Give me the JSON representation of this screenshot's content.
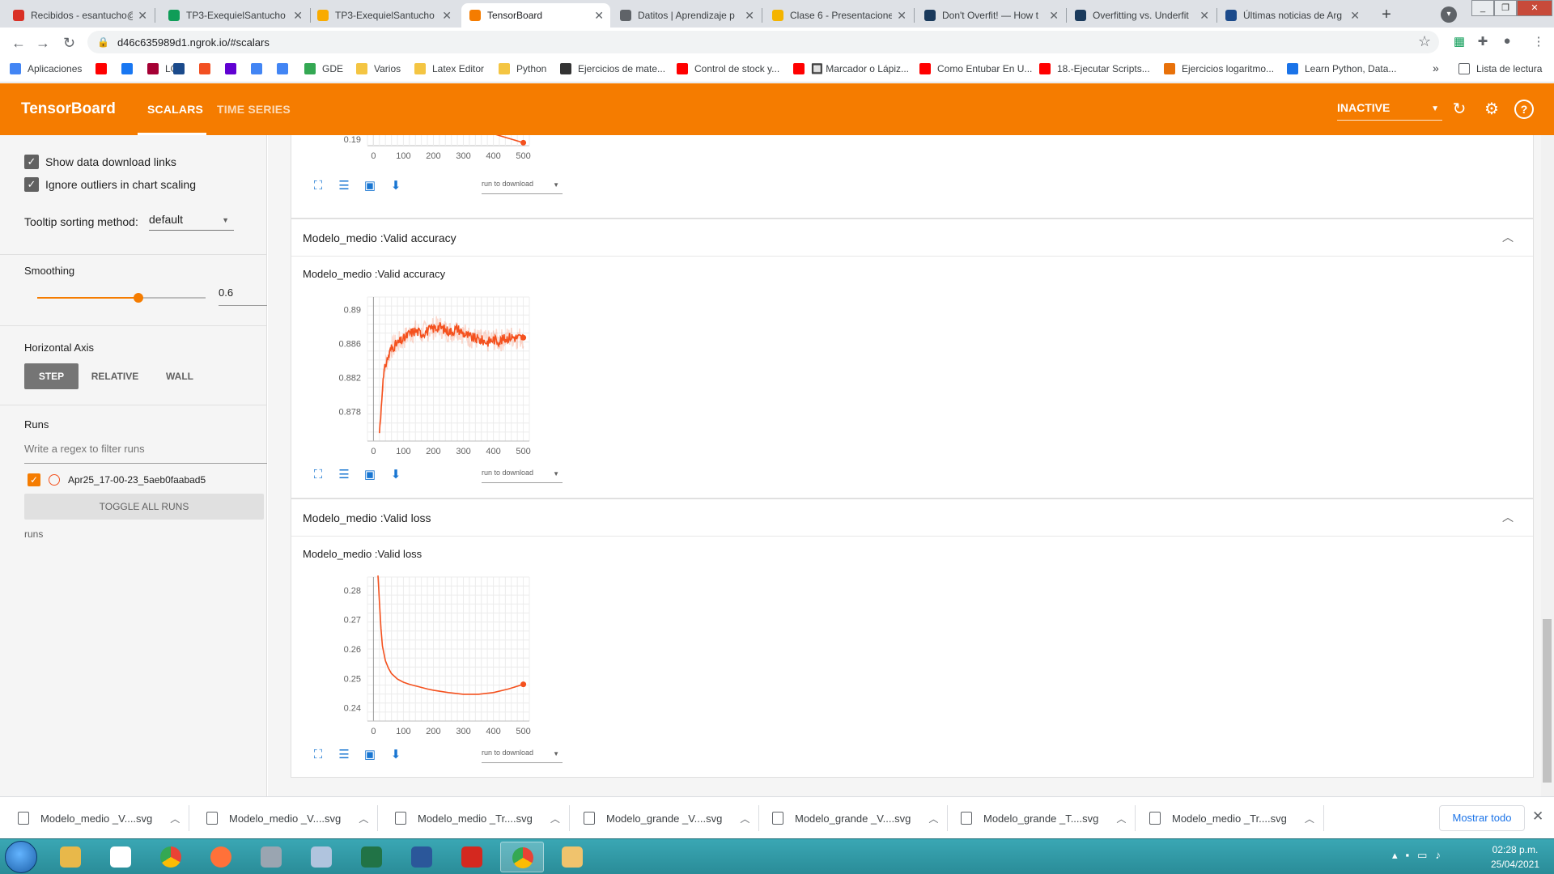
{
  "browser": {
    "tabs": [
      {
        "title": "Recibidos - esantucho@",
        "icon": "gmail-icon",
        "color": "#d93025"
      },
      {
        "title": "TP3-ExequielSantucho",
        "icon": "google-drive-icon",
        "color": "#0f9d58"
      },
      {
        "title": "TP3-ExequielSantucho",
        "icon": "colab-icon",
        "color": "#f9ab00"
      },
      {
        "title": "TensorBoard",
        "icon": "tensorboard-icon",
        "color": "#f57c00"
      },
      {
        "title": "Datitos | Aprendizaje p",
        "icon": "page-icon",
        "color": "#5f6368"
      },
      {
        "title": "Clase 6 - Presentacione",
        "icon": "google-slides-icon",
        "color": "#f4b400"
      },
      {
        "title": "Don't Overfit! — How t",
        "icon": "tds-icon",
        "color": "#1a3a5c"
      },
      {
        "title": "Overfitting vs. Underfit",
        "icon": "tds-icon",
        "color": "#1a3a5c"
      },
      {
        "title": "Últimas noticias de Arg",
        "icon": "ln-icon",
        "color": "#1b4a8b"
      }
    ],
    "new_tab": "+",
    "url": "d46c635989d1.ngrok.io/#scalars",
    "bookmarks": [
      {
        "label": "Aplicaciones",
        "icon": "apps-icon",
        "color": "#4285f4"
      },
      {
        "label": "",
        "icon": "youtube-icon",
        "color": "#ff0000"
      },
      {
        "label": "",
        "icon": "facebook-icon",
        "color": "#1877f2"
      },
      {
        "label": "LG",
        "icon": "lg-icon",
        "color": "#a50034"
      },
      {
        "label": "",
        "icon": "ln-icon",
        "color": "#1b4a8b"
      },
      {
        "label": "",
        "icon": "microsoft-icon",
        "color": "#f25022"
      },
      {
        "label": "",
        "icon": "yahoo-icon",
        "color": "#6001d2"
      },
      {
        "label": "",
        "icon": "google-icon",
        "color": "#4285f4"
      },
      {
        "label": "",
        "icon": "translate-icon",
        "color": "#4285f4"
      },
      {
        "label": "GDE",
        "icon": "gde-icon",
        "color": "#34a853"
      },
      {
        "label": "Varios",
        "icon": "folder-icon",
        "color": "#f4c542"
      },
      {
        "label": "Latex Editor",
        "icon": "folder-icon",
        "color": "#f4c542"
      },
      {
        "label": "Python",
        "icon": "folder-icon",
        "color": "#f4c542"
      },
      {
        "label": "Ejercicios de mate...",
        "icon": "chart-icon",
        "color": "#333333"
      },
      {
        "label": "Control de stock y...",
        "icon": "youtube-icon",
        "color": "#ff0000"
      },
      {
        "label": "🔲 Marcador o Lápiz...",
        "icon": "youtube-icon",
        "color": "#ff0000"
      },
      {
        "label": "Como Entubar En U...",
        "icon": "youtube-icon",
        "color": "#ff0000"
      },
      {
        "label": "18.-Ejecutar Scripts...",
        "icon": "youtube-icon",
        "color": "#ff0000"
      },
      {
        "label": "Ejercicios logaritmo...",
        "icon": "web-icon",
        "color": "#e8710a"
      },
      {
        "label": "Learn Python, Data...",
        "icon": "k-icon",
        "color": "#1a73e8"
      }
    ],
    "bookmarks_more": "»",
    "reading_list": "Lista de lectura"
  },
  "tensorboard": {
    "logo": "TensorBoard",
    "tabs": [
      "SCALARS",
      "TIME SERIES"
    ],
    "status": "INACTIVE",
    "colors": {
      "header": "#f57c00",
      "run": "#f4511e"
    }
  },
  "sidebar": {
    "show_download_links": "Show data download links",
    "ignore_outliers": "Ignore outliers in chart scaling",
    "tooltip_label": "Tooltip sorting method:",
    "tooltip_value": "default",
    "smoothing_label": "Smoothing",
    "smoothing_value": "0.6",
    "smoothing_fraction": 0.6,
    "horizontal_axis_label": "Horizontal Axis",
    "axis_options": [
      "STEP",
      "RELATIVE",
      "WALL"
    ],
    "runs_label": "Runs",
    "regex_placeholder": "Write a regex to filter runs",
    "run_name": "Apr25_17-00-23_5aeb0faabad5",
    "toggle_all": "TOGGLE ALL RUNS",
    "runs_footer": "runs"
  },
  "panels": [
    {
      "title": "Modelo_medio :Valid accuracy"
    },
    {
      "title": "Modelo_medio :Valid loss"
    }
  ],
  "run_to_download": "run to download",
  "chart_data": [
    {
      "type": "line",
      "title": "",
      "xticks": [
        0,
        100,
        200,
        300,
        400,
        500
      ],
      "yticks": [
        0.19
      ],
      "x": [
        400,
        500
      ],
      "series": [
        {
          "values": [
            0.191,
            0.1895
          ]
        }
      ]
    },
    {
      "type": "line",
      "title": "Modelo_medio :Valid accuracy",
      "xlim": [
        -20,
        520
      ],
      "ylim": [
        0.8745,
        0.8915
      ],
      "xticks": [
        0,
        100,
        200,
        300,
        400,
        500
      ],
      "yticks": [
        0.878,
        0.882,
        0.886,
        0.89
      ],
      "x": [
        20,
        25,
        30,
        40,
        50,
        60,
        80,
        100,
        120,
        140,
        160,
        180,
        200,
        220,
        240,
        260,
        280,
        300,
        320,
        340,
        360,
        380,
        400,
        420,
        440,
        460,
        480,
        500
      ],
      "series": [
        {
          "values": [
            0.8755,
            0.878,
            0.881,
            0.8835,
            0.8845,
            0.8855,
            0.886,
            0.8865,
            0.8872,
            0.8875,
            0.8872,
            0.8875,
            0.8878,
            0.888,
            0.8876,
            0.8874,
            0.8878,
            0.8872,
            0.8868,
            0.8866,
            0.8864,
            0.8862,
            0.8865,
            0.8863,
            0.8866,
            0.8868,
            0.8867,
            0.8867
          ]
        }
      ]
    },
    {
      "type": "line",
      "title": "Modelo_medio :Valid loss",
      "xlim": [
        -20,
        520
      ],
      "ylim": [
        0.2355,
        0.2845
      ],
      "xticks": [
        0,
        100,
        200,
        300,
        400,
        500
      ],
      "yticks": [
        0.24,
        0.25,
        0.26,
        0.27,
        0.28
      ],
      "x": [
        15,
        20,
        25,
        30,
        40,
        50,
        60,
        80,
        100,
        120,
        150,
        180,
        200,
        250,
        300,
        350,
        400,
        450,
        500
      ],
      "series": [
        {
          "values": [
            0.285,
            0.276,
            0.267,
            0.261,
            0.256,
            0.2535,
            0.2517,
            0.2498,
            0.2487,
            0.248,
            0.2472,
            0.2464,
            0.246,
            0.2452,
            0.2446,
            0.2446,
            0.2452,
            0.2464,
            0.248
          ]
        }
      ]
    }
  ],
  "downloads": [
    "Modelo_medio _V....svg",
    "Modelo_medio _V....svg",
    "Modelo_medio _Tr....svg",
    "Modelo_grande _V....svg",
    "Modelo_grande _V....svg",
    "Modelo_grande _T....svg",
    "Modelo_medio _Tr....svg"
  ],
  "downloads_show_all": "Mostrar todo",
  "taskbar": {
    "apps": [
      {
        "icon": "explorer-icon",
        "color": "#e8b84a"
      },
      {
        "icon": "alien-icon",
        "color": "#ffffff"
      },
      {
        "icon": "chrome-icon",
        "color": "#4285f4"
      },
      {
        "icon": "firefox-icon",
        "color": "#ff7139"
      },
      {
        "icon": "calculator-icon",
        "color": "#9aa5b1"
      },
      {
        "icon": "notepad-icon",
        "color": "#b0c4de"
      },
      {
        "icon": "excel-icon",
        "color": "#217346"
      },
      {
        "icon": "word-icon",
        "color": "#2b579a"
      },
      {
        "icon": "acrobat-icon",
        "color": "#d4281f"
      },
      {
        "icon": "chrome-icon",
        "color": "#4285f4"
      },
      {
        "icon": "paint-icon",
        "color": "#f0c36d"
      }
    ],
    "time": "02:28 p.m.",
    "date": "25/04/2021"
  }
}
